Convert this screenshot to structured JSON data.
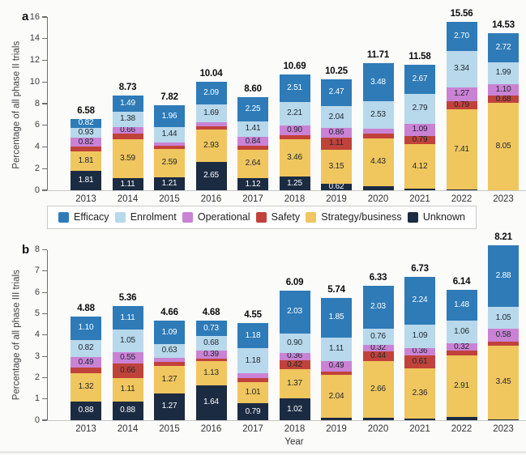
{
  "legend": {
    "items": [
      {
        "label": "Efficacy",
        "color": "#2e7bb8"
      },
      {
        "label": "Enrolment",
        "color": "#b8d8ec"
      },
      {
        "label": "Operational",
        "color": "#ca82d4"
      },
      {
        "label": "Safety",
        "color": "#c1423a"
      },
      {
        "label": "Strategy/business",
        "color": "#f0c65e"
      },
      {
        "label": "Unknown",
        "color": "#1b2b42"
      }
    ]
  },
  "chart_data": [
    {
      "type": "bar",
      "stacked": true,
      "panel_label": "a",
      "title": "",
      "ylabel": "Percentage of all phase II trials",
      "xlabel": "",
      "ylim": [
        0,
        16
      ],
      "ytick_step": 2,
      "grid": false,
      "legend_position": "below-panel-a",
      "categories": [
        "2013",
        "2014",
        "2015",
        "2016",
        "2017",
        "2018",
        "2019",
        "2020",
        "2021",
        "2022",
        "2023"
      ],
      "totals": [
        "6.58",
        "8.73",
        "7.82",
        "10.04",
        "8.60",
        "10.69",
        "10.25",
        "11.71",
        "11.58",
        "15.56",
        "14.53"
      ],
      "series": [
        {
          "name": "Unknown",
          "color": "#1b2b42",
          "text_color": "#ffffff",
          "values": [
            1.81,
            1.11,
            1.21,
            2.65,
            1.12,
            1.25,
            0.62,
            0.37,
            0.12,
            0.05,
            0.0
          ],
          "labels": [
            "1.81",
            "1.11",
            "1.21",
            "2.65",
            "1.12",
            "1.25",
            "0.62",
            "",
            "",
            "",
            ""
          ]
        },
        {
          "name": "Strategy/business",
          "color": "#f0c65e",
          "text_color": "#21292f",
          "values": [
            1.81,
            3.59,
            2.59,
            2.93,
            2.64,
            3.46,
            3.15,
            4.43,
            4.12,
            7.41,
            8.05
          ],
          "labels": [
            "1.81",
            "3.59",
            "2.59",
            "2.93",
            "2.64",
            "3.46",
            "3.15",
            "4.43",
            "4.12",
            "7.41",
            "8.05"
          ]
        },
        {
          "name": "Safety",
          "color": "#c1423a",
          "text_color": "#21292f",
          "values": [
            0.39,
            0.5,
            0.3,
            0.33,
            0.34,
            0.36,
            1.11,
            0.45,
            0.79,
            0.79,
            0.68
          ],
          "labels": [
            "",
            "",
            "",
            "",
            "",
            "",
            "1.11",
            "",
            "0.79",
            "0.79",
            "0.68"
          ]
        },
        {
          "name": "Operational",
          "color": "#ca82d4",
          "text_color": "#21292f",
          "values": [
            0.82,
            0.66,
            0.32,
            0.35,
            0.84,
            0.9,
            0.86,
            0.45,
            1.09,
            1.27,
            1.1
          ],
          "labels": [
            "0.82",
            "0.66",
            "",
            "",
            "0.84",
            "0.90",
            "0.86",
            "",
            "1.09",
            "1.27",
            "1.10"
          ]
        },
        {
          "name": "Enrolment",
          "color": "#b8d8ec",
          "text_color": "#21292f",
          "values": [
            0.93,
            1.38,
            1.44,
            1.69,
            1.41,
            2.21,
            2.04,
            2.53,
            2.79,
            3.34,
            1.99
          ],
          "labels": [
            "0.93",
            "1.38",
            "1.44",
            "1.69",
            "1.41",
            "2.21",
            "2.04",
            "2.53",
            "2.79",
            "3.34",
            "1.99"
          ]
        },
        {
          "name": "Efficacy",
          "color": "#2e7bb8",
          "text_color": "#ffffff",
          "values": [
            0.82,
            1.49,
            1.96,
            2.09,
            2.25,
            2.51,
            2.47,
            3.48,
            2.67,
            2.7,
            2.72
          ],
          "labels": [
            "0.82",
            "1.49",
            "1.96",
            "2.09",
            "2.25",
            "2.51",
            "2.47",
            "3.48",
            "2.67",
            "2.70",
            "2.72"
          ]
        }
      ]
    },
    {
      "type": "bar",
      "stacked": true,
      "panel_label": "b",
      "title": "",
      "ylabel": "Percentage of all phase III trials",
      "xlabel": "Year",
      "ylim": [
        0,
        8
      ],
      "ytick_step": 1,
      "grid": false,
      "categories": [
        "2013",
        "2014",
        "2015",
        "2016",
        "2017",
        "2018",
        "2019",
        "2020",
        "2021",
        "2022",
        "2023"
      ],
      "totals": [
        "4.88",
        "5.36",
        "4.66",
        "4.68",
        "4.55",
        "6.09",
        "5.74",
        "6.33",
        "6.73",
        "6.14",
        "8.21"
      ],
      "series": [
        {
          "name": "Unknown",
          "color": "#1b2b42",
          "text_color": "#ffffff",
          "values": [
            0.88,
            0.88,
            1.27,
            1.64,
            0.79,
            1.02,
            0.1,
            0.12,
            0.07,
            0.15,
            0.05
          ],
          "labels": [
            "0.88",
            "0.88",
            "1.27",
            "1.64",
            "0.79",
            "1.02",
            "",
            "",
            "",
            "",
            ""
          ]
        },
        {
          "name": "Strategy/business",
          "color": "#f0c65e",
          "text_color": "#21292f",
          "values": [
            1.32,
            1.11,
            1.27,
            1.13,
            1.01,
            1.37,
            2.04,
            2.66,
            2.36,
            2.91,
            3.45
          ],
          "labels": [
            "1.32",
            "1.11",
            "1.27",
            "1.13",
            "1.01",
            "1.37",
            "2.04",
            "2.66",
            "2.36",
            "2.91",
            "3.45"
          ]
        },
        {
          "name": "Safety",
          "color": "#c1423a",
          "text_color": "#21292f",
          "values": [
            0.27,
            0.66,
            0.19,
            0.11,
            0.19,
            0.42,
            0.15,
            0.44,
            0.61,
            0.22,
            0.2
          ],
          "labels": [
            "",
            "0.66",
            "",
            "",
            "",
            "0.42",
            "",
            "0.44",
            "0.61",
            "",
            ""
          ]
        },
        {
          "name": "Operational",
          "color": "#ca82d4",
          "text_color": "#21292f",
          "values": [
            0.49,
            0.55,
            0.21,
            0.39,
            0.2,
            0.36,
            0.49,
            0.32,
            0.36,
            0.32,
            0.58
          ],
          "labels": [
            "0.49",
            "0.55",
            "",
            "0.39",
            "",
            "0.36",
            "0.49",
            "0.32",
            "0.36",
            "0.32",
            "0.58"
          ]
        },
        {
          "name": "Enrolment",
          "color": "#b8d8ec",
          "text_color": "#21292f",
          "values": [
            0.82,
            1.05,
            0.63,
            0.68,
            1.18,
            0.9,
            1.11,
            0.76,
            1.09,
            1.06,
            1.05
          ],
          "labels": [
            "0.82",
            "1.05",
            "0.63",
            "0.68",
            "1.18",
            "0.90",
            "1.11",
            "0.76",
            "1.09",
            "1.06",
            "1.05"
          ]
        },
        {
          "name": "Efficacy",
          "color": "#2e7bb8",
          "text_color": "#ffffff",
          "values": [
            1.1,
            1.11,
            1.09,
            0.73,
            1.18,
            2.03,
            1.85,
            2.03,
            2.24,
            1.48,
            2.88
          ],
          "labels": [
            "1.10",
            "1.11",
            "1.09",
            "0.73",
            "1.18",
            "2.03",
            "1.85",
            "2.03",
            "2.24",
            "1.48",
            "2.88"
          ]
        }
      ]
    }
  ]
}
